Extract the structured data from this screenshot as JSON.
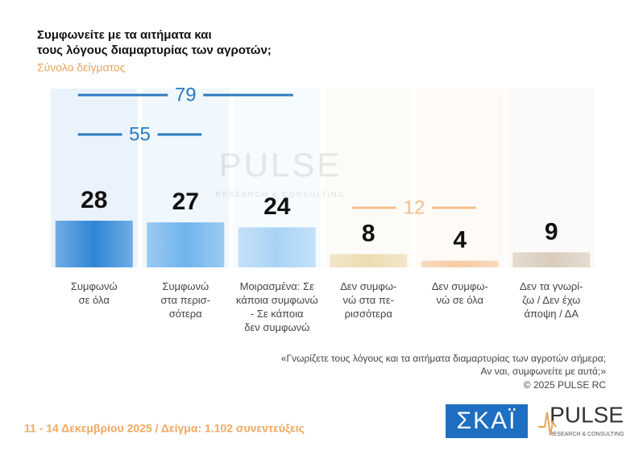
{
  "chart_data": {
    "type": "bar",
    "title": "Συμφωνείτε με τα αιτήματα και\nτους λόγους διαμαρτυρίας των αγροτών;",
    "subtitle": "Σύνολο δείγματος",
    "categories": [
      "Συμφωνώ\nσε όλα",
      "Συμφωνώ\nστα περισ-\nσότερα",
      "Μοιρασμένα: Σε\nκάποια συμφωνώ\n- Σε κάποια\nδεν συμφωνώ",
      "Δεν συμφω-\nνώ στα πε-\nρισσότερα",
      "Δεν συμφω-\nνώ σε όλα",
      "Δεν τα γνωρί-\nζω / Δεν έχω\nάποψη / ΔΑ"
    ],
    "values": [
      28,
      27,
      24,
      8,
      4,
      9
    ],
    "colors": [
      "#2f86d6",
      "#6fb3ec",
      "#a9d3f6",
      "#eddcb2",
      "#f6cba2",
      "#d9ccbb"
    ],
    "groups": [
      {
        "value": 55,
        "span": [
          0,
          1
        ],
        "color": "#2b7bbf"
      },
      {
        "value": 79,
        "span": [
          0,
          2
        ],
        "color": "#2b7bbf"
      },
      {
        "value": 12,
        "span": [
          3,
          4
        ],
        "color": "#f3c08f"
      }
    ],
    "note": "«Γνωρίζετε τους λόγους και τα αιτήματα διαμαρτυρίας των αγροτών σήμερα;\nΑν ναι, συμφωνείτε με αυτά;»",
    "copyright": "©  2025  PULSE RC"
  },
  "footer": {
    "fieldwork": "11 - 14 Δεκεμβρίου 2025  /  Δείγμα:  1.102 συνεντεύξεις"
  },
  "logos": {
    "skai": "ΣΚΑΪ",
    "pulse": "PULSE",
    "pulse_tagline": "RESEARCH & CONSULTING"
  }
}
